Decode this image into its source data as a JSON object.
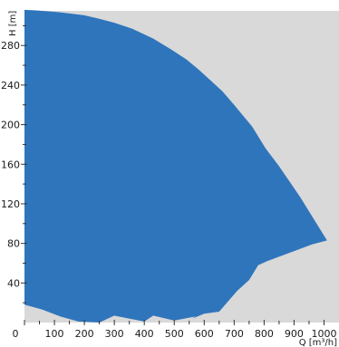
{
  "chart_data": {
    "type": "area",
    "xlabel": "Q [m³/h]",
    "ylabel": "H [m]",
    "xlim": [
      0,
      1050
    ],
    "ylim": [
      0,
      315
    ],
    "x_ticks": [
      "0",
      "100",
      "200",
      "300",
      "400",
      "500",
      "600",
      "700",
      "800",
      "900",
      "1000"
    ],
    "y_ticks": [
      "40",
      "80",
      "120",
      "160",
      "200",
      "240",
      "280"
    ],
    "x_tick_values": [
      0,
      100,
      200,
      300,
      400,
      500,
      600,
      700,
      800,
      900,
      1000
    ],
    "y_tick_values": [
      40,
      80,
      120,
      160,
      200,
      240,
      280
    ],
    "grid": false,
    "colors": {
      "plot_background": "#d9d9d9",
      "envelope_fill": "#2f75bb"
    },
    "series": [
      {
        "region": "pump-operating-envelope",
        "x": [
          0,
          40,
          80,
          120,
          160,
          200,
          250,
          300,
          360,
          430,
          490,
          540,
          580,
          620,
          660,
          700,
          760,
          805,
          850,
          920,
          1010,
          960,
          810,
          780,
          750,
          710,
          650,
          600,
          560,
          570,
          500,
          430,
          400,
          300,
          250,
          180,
          120,
          60,
          0
        ],
        "y": [
          316,
          315.5,
          314.5,
          313.5,
          312,
          310.5,
          307,
          303,
          297,
          287,
          276,
          266,
          256,
          245,
          234,
          220,
          198,
          176,
          158,
          127,
          83,
          79,
          62,
          58,
          43,
          32,
          11,
          9,
          4,
          6,
          2,
          7,
          1,
          7,
          0,
          1,
          6,
          13,
          18
        ]
      }
    ]
  }
}
